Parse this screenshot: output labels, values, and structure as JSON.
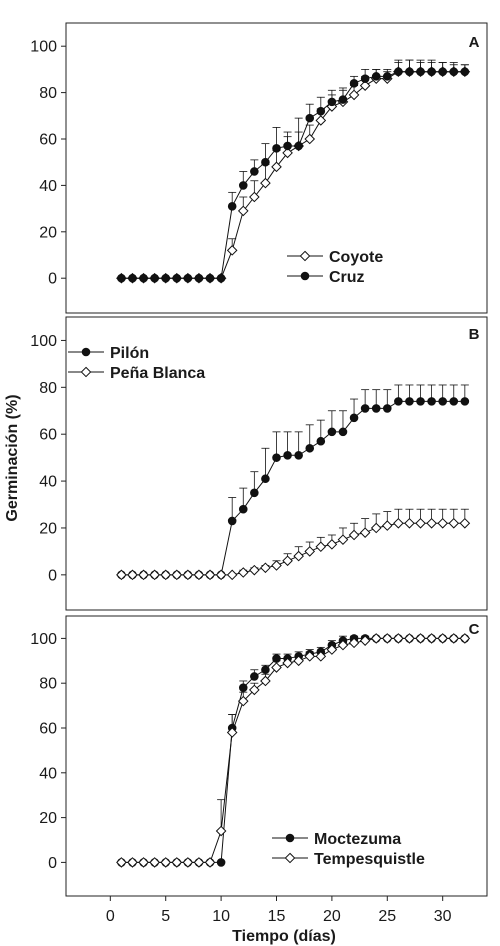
{
  "chart_data": {
    "type": "line",
    "x_axis": {
      "label": "Tiempo (días)",
      "ticks": [
        0,
        5,
        10,
        15,
        20,
        25,
        30
      ],
      "xlim": [
        -4,
        34
      ]
    },
    "y_axis_label": "Germinación (%)",
    "panels": [
      {
        "letter": "A",
        "ylim": [
          -15,
          110
        ],
        "yticks": [
          0,
          20,
          40,
          60,
          80,
          100
        ],
        "legend_placement": "lower-right",
        "series": [
          {
            "name": "Coyote",
            "marker": "open-diamond",
            "x": [
              1,
              2,
              3,
              4,
              5,
              6,
              7,
              8,
              9,
              10,
              11,
              12,
              13,
              14,
              15,
              16,
              17,
              18,
              19,
              20,
              21,
              22,
              23,
              24,
              25,
              26,
              27,
              28,
              29,
              30,
              31,
              32
            ],
            "y": [
              0,
              0,
              0,
              0,
              0,
              0,
              0,
              0,
              0,
              0,
              12,
              29,
              35,
              41,
              48,
              54,
              57,
              60,
              68,
              74,
              76,
              79,
              83,
              86,
              86,
              89,
              89,
              89,
              89,
              89,
              89,
              89
            ],
            "err": [
              0,
              0,
              0,
              0,
              0,
              0,
              0,
              0,
              0,
              0,
              5,
              6,
              7,
              8,
              7,
              7,
              6,
              6,
              5,
              5,
              5,
              4,
              4,
              4,
              3,
              4,
              5,
              5,
              5,
              4,
              4,
              3
            ]
          },
          {
            "name": "Cruz",
            "marker": "filled-circle",
            "x": [
              1,
              2,
              3,
              4,
              5,
              6,
              7,
              8,
              9,
              10,
              11,
              12,
              13,
              14,
              15,
              16,
              17,
              18,
              19,
              20,
              21,
              22,
              23,
              24,
              25,
              26,
              27,
              28,
              29,
              30,
              31,
              32
            ],
            "y": [
              0,
              0,
              0,
              0,
              0,
              0,
              0,
              0,
              0,
              0,
              31,
              40,
              46,
              50,
              56,
              57,
              57,
              69,
              72,
              76,
              77,
              84,
              86,
              87,
              87,
              89,
              89,
              89,
              89,
              89,
              89,
              89
            ],
            "err": [
              0,
              0,
              0,
              0,
              0,
              0,
              0,
              0,
              0,
              0,
              6,
              6,
              5,
              8,
              9,
              6,
              12,
              6,
              6,
              5,
              5,
              3,
              4,
              3,
              3,
              5,
              5,
              4,
              4,
              4,
              3,
              3
            ]
          }
        ]
      },
      {
        "letter": "B",
        "ylim": [
          -15,
          110
        ],
        "yticks": [
          0,
          20,
          40,
          60,
          80,
          100
        ],
        "legend_placement": "top-left",
        "series": [
          {
            "name": "Pilón",
            "marker": "filled-circle",
            "x": [
              1,
              2,
              3,
              4,
              5,
              6,
              7,
              8,
              9,
              10,
              11,
              12,
              13,
              14,
              15,
              16,
              17,
              18,
              19,
              20,
              21,
              22,
              23,
              24,
              25,
              26,
              27,
              28,
              29,
              30,
              31,
              32
            ],
            "y": [
              0,
              0,
              0,
              0,
              0,
              0,
              0,
              0,
              0,
              0,
              23,
              28,
              35,
              41,
              50,
              51,
              51,
              54,
              57,
              61,
              61,
              67,
              71,
              71,
              71,
              74,
              74,
              74,
              74,
              74,
              74,
              74
            ],
            "err": [
              0,
              0,
              0,
              0,
              0,
              0,
              0,
              0,
              0,
              0,
              10,
              9,
              9,
              13,
              11,
              10,
              10,
              10,
              9,
              9,
              9,
              8,
              8,
              8,
              8,
              7,
              7,
              7,
              7,
              7,
              7,
              7
            ]
          },
          {
            "name": "Peña Blanca",
            "marker": "open-diamond",
            "x": [
              1,
              2,
              3,
              4,
              5,
              6,
              7,
              8,
              9,
              10,
              11,
              12,
              13,
              14,
              15,
              16,
              17,
              18,
              19,
              20,
              21,
              22,
              23,
              24,
              25,
              26,
              27,
              28,
              29,
              30,
              31,
              32
            ],
            "y": [
              0,
              0,
              0,
              0,
              0,
              0,
              0,
              0,
              0,
              0,
              0,
              1,
              2,
              3,
              4,
              6,
              8,
              10,
              12,
              13,
              15,
              17,
              18,
              20,
              21,
              22,
              22,
              22,
              22,
              22,
              22,
              22
            ],
            "err": [
              0,
              0,
              0,
              0,
              0,
              0,
              0,
              0,
              0,
              0,
              0,
              1,
              1,
              1,
              2,
              3,
              4,
              4,
              4,
              4,
              5,
              5,
              6,
              6,
              6,
              6,
              6,
              6,
              6,
              6,
              6,
              6
            ]
          }
        ]
      },
      {
        "letter": "C",
        "ylim": [
          -15,
          110
        ],
        "yticks": [
          0,
          20,
          40,
          60,
          80,
          100
        ],
        "legend_placement": "lower-right",
        "series": [
          {
            "name": "Moctezuma",
            "marker": "filled-circle",
            "x": [
              1,
              2,
              3,
              4,
              5,
              6,
              7,
              8,
              9,
              10,
              11,
              12,
              13,
              14,
              15,
              16,
              17,
              18,
              19,
              20,
              21,
              22,
              23,
              24,
              25,
              26,
              27,
              28,
              29,
              30,
              31,
              32
            ],
            "y": [
              0,
              0,
              0,
              0,
              0,
              0,
              0,
              0,
              0,
              0,
              60,
              78,
              83,
              86,
              91,
              91,
              92,
              93,
              94,
              97,
              99,
              100,
              100,
              100,
              100,
              100,
              100,
              100,
              100,
              100,
              100,
              100
            ],
            "err": [
              0,
              0,
              0,
              0,
              0,
              0,
              0,
              0,
              0,
              0,
              6,
              3,
              3,
              2,
              2,
              2,
              2,
              2,
              2,
              2,
              2,
              1,
              1,
              0,
              0,
              0,
              0,
              0,
              0,
              0,
              0,
              0
            ]
          },
          {
            "name": "Tempesquistle",
            "marker": "open-diamond",
            "x": [
              1,
              2,
              3,
              4,
              5,
              6,
              7,
              8,
              9,
              10,
              11,
              12,
              13,
              14,
              15,
              16,
              17,
              18,
              19,
              20,
              21,
              22,
              23,
              24,
              25,
              26,
              27,
              28,
              29,
              30,
              31,
              32
            ],
            "y": [
              0,
              0,
              0,
              0,
              0,
              0,
              0,
              0,
              0,
              14,
              58,
              72,
              77,
              81,
              87,
              89,
              90,
              92,
              92,
              95,
              97,
              98,
              99,
              100,
              100,
              100,
              100,
              100,
              100,
              100,
              100,
              100
            ],
            "err": [
              0,
              0,
              0,
              0,
              0,
              0,
              0,
              0,
              0,
              14,
              8,
              4,
              3,
              3,
              3,
              2,
              2,
              2,
              2,
              2,
              1,
              1,
              1,
              0,
              0,
              0,
              0,
              0,
              0,
              0,
              0,
              0
            ]
          }
        ]
      }
    ]
  }
}
